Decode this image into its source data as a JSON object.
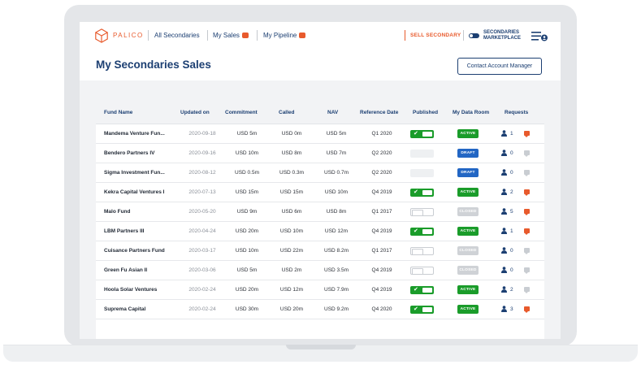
{
  "nav": {
    "brand": "PALICO",
    "links": [
      {
        "label": "All Secondaries",
        "badge": false
      },
      {
        "label": "My Sales",
        "badge": true
      },
      {
        "label": "My Pipeline",
        "badge": true
      }
    ],
    "sell_label": "SELL SECONDARY",
    "marketplace_line1": "SECONDARIES",
    "marketplace_line2": "MARKETPLACE"
  },
  "header": {
    "title": "My Secondaries Sales",
    "contact_label": "Contact Account Manager"
  },
  "table": {
    "columns": [
      "Fund Name",
      "Updated on",
      "Commitment",
      "Called",
      "NAV",
      "Reference Date",
      "Published",
      "My Data Room",
      "Requests"
    ],
    "rows": [
      {
        "fund": "Mandema Venture Fun...",
        "updated": "2020-09-18",
        "commitment": "USD 5m",
        "called": "USD 0m",
        "nav": "USD 5m",
        "ref": "Q1 2020",
        "published": "on",
        "room": "ACTIVE",
        "requests": "1",
        "msg": "hot"
      },
      {
        "fund": "Bendero Partners IV",
        "updated": "2020-09-16",
        "commitment": "USD 10m",
        "called": "USD 8m",
        "nav": "USD 7m",
        "ref": "Q2 2020",
        "published": "empty",
        "room": "DRAFT",
        "requests": "0",
        "msg": "cold"
      },
      {
        "fund": "Sigma Investment Fun...",
        "updated": "2020-08-12",
        "commitment": "USD 0.5m",
        "called": "USD 0.3m",
        "nav": "USD 0.7m",
        "ref": "Q2 2020",
        "published": "empty",
        "room": "DRAFT",
        "requests": "0",
        "msg": "cold"
      },
      {
        "fund": "Kekra Capital Ventures I",
        "updated": "2020-07-13",
        "commitment": "USD 15m",
        "called": "USD 15m",
        "nav": "USD 10m",
        "ref": "Q4 2019",
        "published": "on",
        "room": "ACTIVE",
        "requests": "2",
        "msg": "hot"
      },
      {
        "fund": "Malo Fund",
        "updated": "2020-05-20",
        "commitment": "USD 9m",
        "called": "USD 6m",
        "nav": "USD 8m",
        "ref": "Q1 2017",
        "published": "off",
        "room": "CLOSED",
        "requests": "5",
        "msg": "hot"
      },
      {
        "fund": "LBM Partners III",
        "updated": "2020-04-24",
        "commitment": "USD 20m",
        "called": "USD 10m",
        "nav": "USD 12m",
        "ref": "Q4 2019",
        "published": "on",
        "room": "ACTIVE",
        "requests": "1",
        "msg": "hot"
      },
      {
        "fund": "Cuisance Partners Fund",
        "updated": "2020-03-17",
        "commitment": "USD 10m",
        "called": "USD 22m",
        "nav": "USD 8.2m",
        "ref": "Q1 2017",
        "published": "off",
        "room": "CLOSED",
        "requests": "0",
        "msg": "cold"
      },
      {
        "fund": "Green Fu Asian II",
        "updated": "2020-03-06",
        "commitment": "USD 5m",
        "called": "USD 2m",
        "nav": "USD 3.5m",
        "ref": "Q4 2019",
        "published": "off",
        "room": "CLOSED",
        "requests": "0",
        "msg": "cold"
      },
      {
        "fund": "Hoola Solar Ventures",
        "updated": "2020-02-24",
        "commitment": "USD 20m",
        "called": "USD 12m",
        "nav": "USD 7.9m",
        "ref": "Q4 2019",
        "published": "on",
        "room": "ACTIVE",
        "requests": "2",
        "msg": "cold"
      },
      {
        "fund": "Suprema Capital",
        "updated": "2020-02-24",
        "commitment": "USD 30m",
        "called": "USD 20m",
        "nav": "USD 9.2m",
        "ref": "Q4 2020",
        "published": "on",
        "room": "ACTIVE",
        "requests": "3",
        "msg": "hot"
      }
    ]
  },
  "colors": {
    "brand_orange": "#e85a2c",
    "navy": "#1c3f72",
    "active_green": "#1a9c2a",
    "draft_blue": "#2266c4",
    "closed_gray": "#cfd2d6"
  },
  "icons": {
    "logo": "cube-icon",
    "menu": "hamburger-user-icon",
    "requests": "person-icon",
    "messages": "chat-bubble-icon"
  }
}
